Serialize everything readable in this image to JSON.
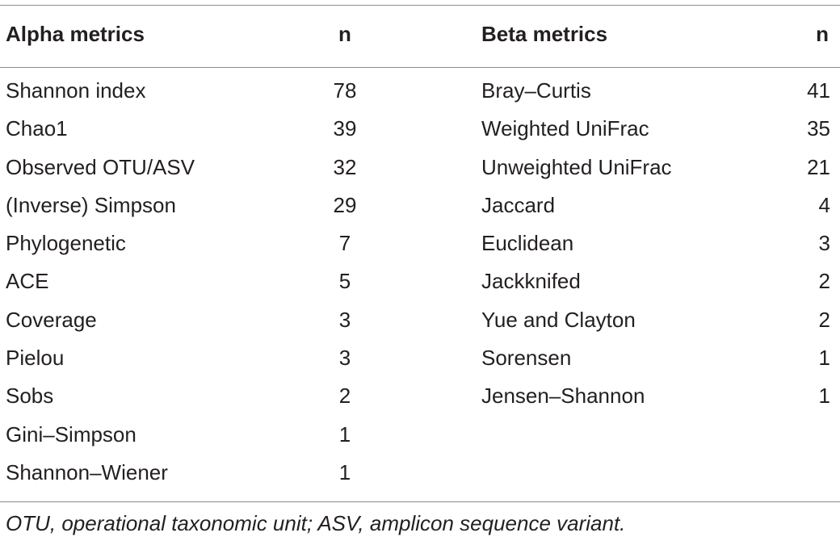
{
  "table": {
    "headers": {
      "alpha": "Alpha metrics",
      "n_alpha": "n",
      "beta": "Beta metrics",
      "n_beta": "n"
    },
    "rows": [
      {
        "alpha": "Shannon index",
        "n_alpha": "78",
        "beta": "Bray–Curtis",
        "n_beta": "41"
      },
      {
        "alpha": "Chao1",
        "n_alpha": "39",
        "beta": "Weighted UniFrac",
        "n_beta": "35"
      },
      {
        "alpha": "Observed OTU/ASV",
        "n_alpha": "32",
        "beta": "Unweighted UniFrac",
        "n_beta": "21"
      },
      {
        "alpha": "(Inverse) Simpson",
        "n_alpha": "29",
        "beta": "Jaccard",
        "n_beta": "4"
      },
      {
        "alpha": "Phylogenetic",
        "n_alpha": "7",
        "beta": "Euclidean",
        "n_beta": "3"
      },
      {
        "alpha": "ACE",
        "n_alpha": "5",
        "beta": "Jackknifed",
        "n_beta": "2"
      },
      {
        "alpha": "Coverage",
        "n_alpha": "3",
        "beta": "Yue and Clayton",
        "n_beta": "2"
      },
      {
        "alpha": "Pielou",
        "n_alpha": "3",
        "beta": "Sorensen",
        "n_beta": "1"
      },
      {
        "alpha": "Sobs",
        "n_alpha": "2",
        "beta": "Jensen–Shannon",
        "n_beta": "1"
      },
      {
        "alpha": "Gini–Simpson",
        "n_alpha": "1",
        "beta": "",
        "n_beta": ""
      },
      {
        "alpha": "Shannon–Wiener",
        "n_alpha": "1",
        "beta": "",
        "n_beta": ""
      }
    ],
    "footnote": "OTU, operational taxonomic unit; ASV, amplicon sequence variant."
  }
}
